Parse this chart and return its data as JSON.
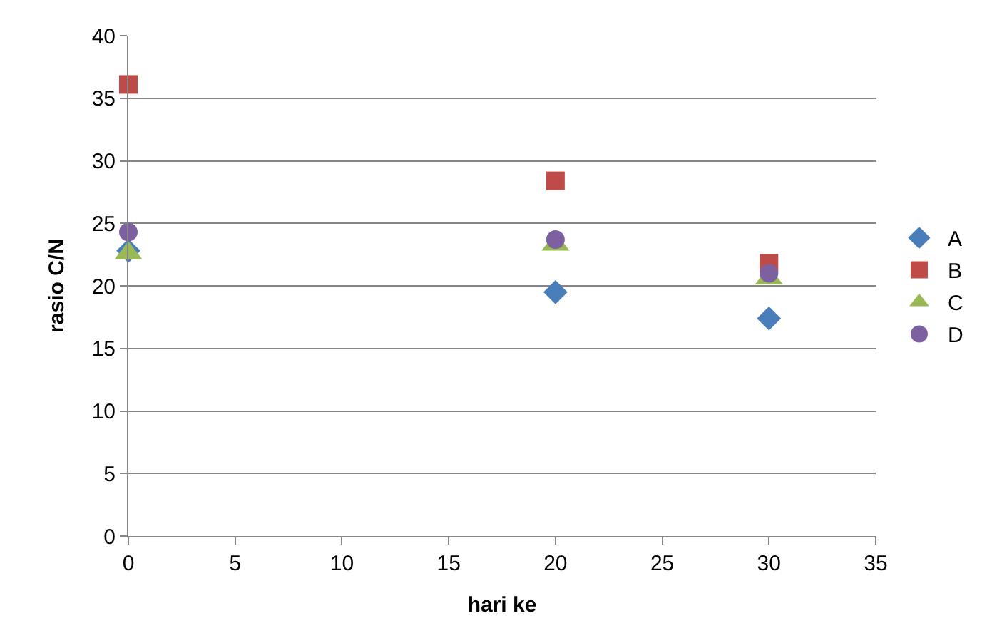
{
  "chart_data": {
    "type": "scatter",
    "xlabel": "hari ke",
    "ylabel": "rasio C/N",
    "x": [
      0,
      20,
      30
    ],
    "xlim": [
      0,
      35
    ],
    "xticks": [
      0,
      5,
      10,
      15,
      20,
      25,
      30,
      35
    ],
    "ylim": [
      0,
      40
    ],
    "yticks": [
      0,
      5,
      10,
      15,
      20,
      25,
      30,
      35,
      40
    ],
    "grid": "y",
    "legend": "right",
    "series": [
      {
        "name": "A",
        "color": "#4a7ebb",
        "marker": "diamond",
        "values": [
          22.8,
          19.5,
          17.4
        ]
      },
      {
        "name": "B",
        "color": "#be4b48",
        "marker": "square",
        "values": [
          36.1,
          28.4,
          21.8
        ]
      },
      {
        "name": "C",
        "color": "#98b954",
        "marker": "triangle",
        "values": [
          22.6,
          23.3,
          20.6
        ]
      },
      {
        "name": "D",
        "color": "#7d60a0",
        "marker": "circle",
        "values": [
          24.3,
          23.7,
          21.0
        ]
      }
    ]
  }
}
